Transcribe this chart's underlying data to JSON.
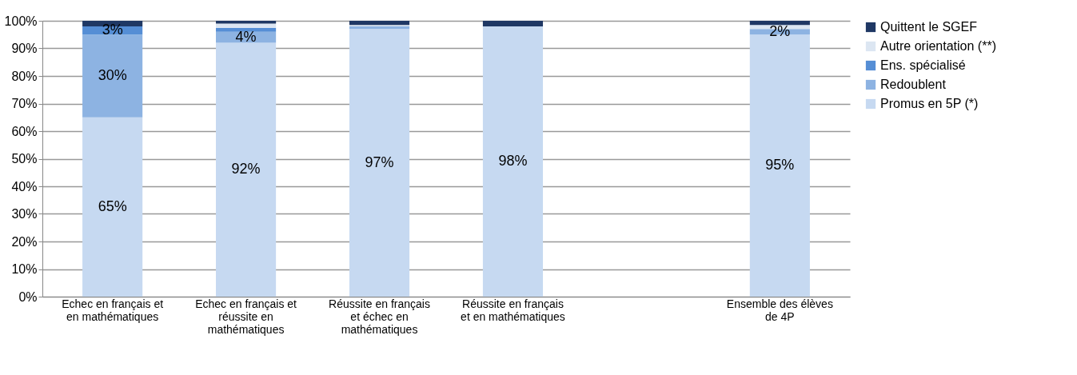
{
  "chart_data": {
    "type": "bar",
    "stacked": true,
    "categories": [
      "Echec en français et en mathématiques",
      "Echec en français et réussite en mathématiques",
      "Réussite en français et échec en mathématiques",
      "Réussite en français et en mathématiques",
      null,
      "Ensemble des élèves de 4P"
    ],
    "series": [
      {
        "name": "Promus en 5P (*)",
        "color": "#c6d9f1",
        "values": [
          65,
          92,
          97,
          98,
          null,
          95
        ],
        "value_labels": [
          "65%",
          "92%",
          "97%",
          "98%",
          null,
          "95%"
        ]
      },
      {
        "name": "Redoublent",
        "color": "#8db3e2",
        "values": [
          30,
          4,
          1,
          0,
          null,
          2
        ],
        "value_labels": [
          "30%",
          "4%",
          null,
          null,
          null,
          "2%"
        ]
      },
      {
        "name": "Ens. spécialisé",
        "color": "#558ed5",
        "values": [
          3,
          1.5,
          0,
          0,
          null,
          null
        ],
        "value_labels": [
          "3%",
          null,
          null,
          null,
          null,
          null
        ]
      },
      {
        "name": "Autre orientation (**)",
        "color": "#dce6f2",
        "values": [
          0,
          1.5,
          0.5,
          0,
          null,
          1.5
        ],
        "value_labels": [
          null,
          null,
          null,
          null,
          null,
          null
        ]
      },
      {
        "name": "Quittent le SGEF",
        "color": "#1f3864",
        "values": [
          2,
          1,
          1.5,
          2,
          null,
          1.5
        ],
        "value_labels": [
          null,
          null,
          null,
          null,
          null,
          null
        ]
      }
    ],
    "ylim": [
      0,
      100
    ],
    "yticks": [
      {
        "value": 0,
        "label": "0%"
      },
      {
        "value": 10,
        "label": "10%"
      },
      {
        "value": 20,
        "label": "20%"
      },
      {
        "value": 30,
        "label": "30%"
      },
      {
        "value": 40,
        "label": "40%"
      },
      {
        "value": 50,
        "label": "50%"
      },
      {
        "value": 60,
        "label": "60%"
      },
      {
        "value": 70,
        "label": "70%"
      },
      {
        "value": 80,
        "label": "80%"
      },
      {
        "value": 90,
        "label": "90%"
      },
      {
        "value": 100,
        "label": "100%"
      }
    ],
    "grid": "y",
    "legend": "right"
  }
}
